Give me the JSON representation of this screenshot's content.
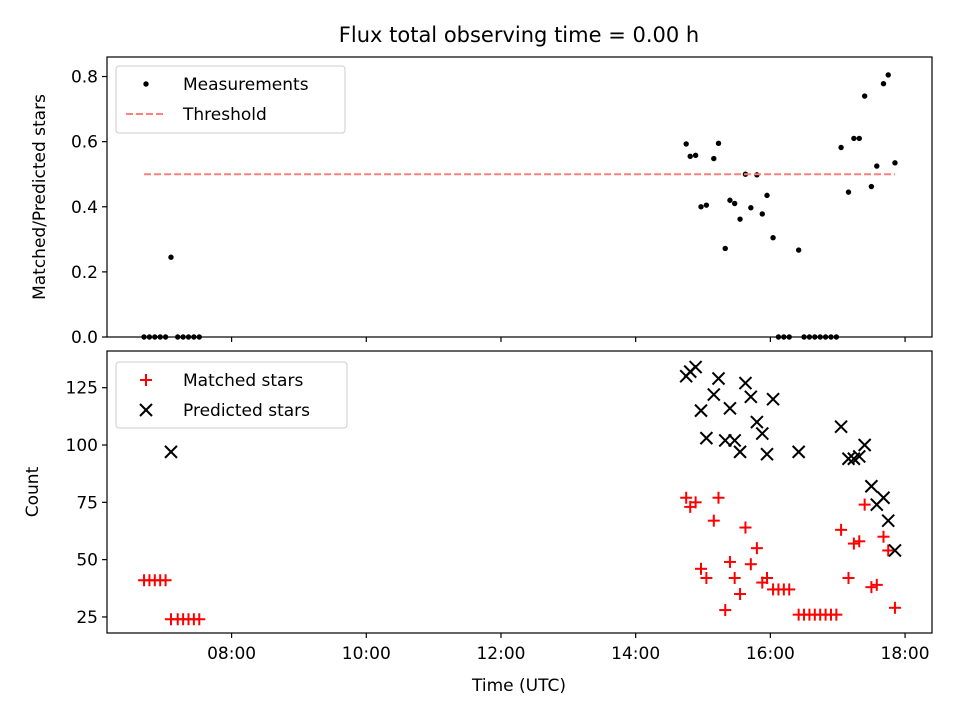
{
  "chart_data": [
    {
      "type": "scatter",
      "title": "Flux total observing time = 0.00 h",
      "xlabel": "",
      "ylabel": "Matched/Predicted stars",
      "xlim": [
        6.15,
        18.4
      ],
      "ylim": [
        0.0,
        0.86
      ],
      "yticks": [
        "0.0",
        "0.2",
        "0.4",
        "0.6",
        "0.8"
      ],
      "xticks": [
        "08:00",
        "10:00",
        "12:00",
        "14:00",
        "16:00",
        "18:00"
      ],
      "legend_position": "top-left",
      "legend": [
        "Measurements",
        "Threshold"
      ],
      "series": [
        {
          "name": "Measurements",
          "marker": "dot",
          "color": "#000000",
          "points": [
            [
              6.7,
              0
            ],
            [
              6.78,
              0
            ],
            [
              6.86,
              0
            ],
            [
              6.94,
              0
            ],
            [
              7.02,
              0
            ],
            [
              7.1,
              0.245
            ],
            [
              7.2,
              0
            ],
            [
              7.28,
              0
            ],
            [
              7.36,
              0
            ],
            [
              7.44,
              0
            ],
            [
              7.52,
              0
            ],
            [
              14.75,
              0.593
            ],
            [
              14.81,
              0.555
            ],
            [
              14.89,
              0.558
            ],
            [
              14.97,
              0.4
            ],
            [
              15.05,
              0.405
            ],
            [
              15.16,
              0.548
            ],
            [
              15.23,
              0.595
            ],
            [
              15.33,
              0.272
            ],
            [
              15.4,
              0.42
            ],
            [
              15.47,
              0.41
            ],
            [
              15.55,
              0.362
            ],
            [
              15.63,
              0.5
            ],
            [
              15.71,
              0.397
            ],
            [
              15.8,
              0.498
            ],
            [
              15.88,
              0.378
            ],
            [
              15.95,
              0.435
            ],
            [
              16.04,
              0.305
            ],
            [
              16.12,
              0
            ],
            [
              16.2,
              0
            ],
            [
              16.28,
              0
            ],
            [
              16.42,
              0.267
            ],
            [
              16.5,
              0
            ],
            [
              16.58,
              0
            ],
            [
              16.66,
              0
            ],
            [
              16.74,
              0
            ],
            [
              16.82,
              0
            ],
            [
              16.9,
              0
            ],
            [
              16.98,
              0
            ],
            [
              17.05,
              0.582
            ],
            [
              17.16,
              0.445
            ],
            [
              17.24,
              0.61
            ],
            [
              17.32,
              0.61
            ],
            [
              17.4,
              0.74
            ],
            [
              17.5,
              0.462
            ],
            [
              17.58,
              0.525
            ],
            [
              17.68,
              0.778
            ],
            [
              17.75,
              0.805
            ],
            [
              17.85,
              0.535
            ]
          ]
        },
        {
          "name": "Threshold",
          "type": "line",
          "style": "dashed",
          "color": "#ff7f7f",
          "x": [
            6.7,
            17.85
          ],
          "y": [
            0.5,
            0.5
          ]
        }
      ]
    },
    {
      "type": "scatter",
      "title": "",
      "xlabel": "Time (UTC)",
      "ylabel": "Count",
      "xlim": [
        6.15,
        18.4
      ],
      "ylim": [
        18,
        141
      ],
      "yticks": [
        "25",
        "50",
        "75",
        "100",
        "125"
      ],
      "xticks": [
        "08:00",
        "10:00",
        "12:00",
        "14:00",
        "16:00",
        "18:00"
      ],
      "legend_position": "top-left",
      "legend": [
        "Matched stars",
        "Predicted stars"
      ],
      "series": [
        {
          "name": "Matched stars",
          "marker": "plus",
          "color": "#ff0000",
          "points": [
            [
              6.7,
              41
            ],
            [
              6.78,
              41
            ],
            [
              6.86,
              41
            ],
            [
              6.94,
              41
            ],
            [
              7.02,
              41
            ],
            [
              7.1,
              24
            ],
            [
              7.2,
              24
            ],
            [
              7.28,
              24
            ],
            [
              7.36,
              24
            ],
            [
              7.44,
              24
            ],
            [
              7.52,
              24
            ],
            [
              14.75,
              77
            ],
            [
              14.81,
              73
            ],
            [
              14.89,
              75
            ],
            [
              14.97,
              46
            ],
            [
              15.05,
              42
            ],
            [
              15.16,
              67
            ],
            [
              15.23,
              77
            ],
            [
              15.33,
              28
            ],
            [
              15.4,
              49
            ],
            [
              15.47,
              42
            ],
            [
              15.55,
              35
            ],
            [
              15.63,
              64
            ],
            [
              15.71,
              48
            ],
            [
              15.8,
              55
            ],
            [
              15.88,
              40
            ],
            [
              15.95,
              42
            ],
            [
              16.04,
              37
            ],
            [
              16.12,
              37
            ],
            [
              16.2,
              37
            ],
            [
              16.28,
              37
            ],
            [
              16.42,
              26
            ],
            [
              16.5,
              26
            ],
            [
              16.58,
              26
            ],
            [
              16.66,
              26
            ],
            [
              16.74,
              26
            ],
            [
              16.82,
              26
            ],
            [
              16.9,
              26
            ],
            [
              16.98,
              26
            ],
            [
              17.05,
              63
            ],
            [
              17.16,
              42
            ],
            [
              17.24,
              57
            ],
            [
              17.32,
              58
            ],
            [
              17.4,
              74
            ],
            [
              17.5,
              38
            ],
            [
              17.58,
              39
            ],
            [
              17.68,
              60
            ],
            [
              17.75,
              54
            ],
            [
              17.85,
              29
            ]
          ]
        },
        {
          "name": "Predicted stars",
          "marker": "x",
          "color": "#000000",
          "points": [
            [
              7.1,
              97
            ],
            [
              14.75,
              130
            ],
            [
              14.81,
              132
            ],
            [
              14.89,
              134
            ],
            [
              14.97,
              115
            ],
            [
              15.05,
              103
            ],
            [
              15.16,
              122
            ],
            [
              15.23,
              129
            ],
            [
              15.33,
              102
            ],
            [
              15.4,
              116
            ],
            [
              15.47,
              102
            ],
            [
              15.55,
              97
            ],
            [
              15.63,
              127
            ],
            [
              15.71,
              121
            ],
            [
              15.8,
              110
            ],
            [
              15.88,
              105
            ],
            [
              15.95,
              96
            ],
            [
              16.04,
              120
            ],
            [
              16.42,
              97
            ],
            [
              17.05,
              108
            ],
            [
              17.16,
              94
            ],
            [
              17.24,
              94
            ],
            [
              17.32,
              95
            ],
            [
              17.4,
              100
            ],
            [
              17.5,
              82
            ],
            [
              17.58,
              74
            ],
            [
              17.68,
              77
            ],
            [
              17.75,
              67
            ],
            [
              17.85,
              54
            ]
          ]
        }
      ]
    }
  ]
}
